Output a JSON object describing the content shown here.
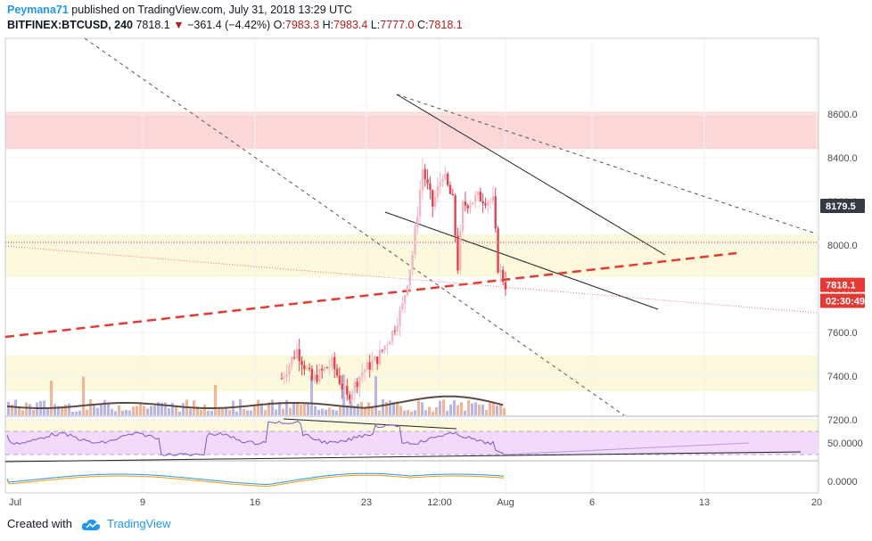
{
  "header": {
    "author": "Peymana71",
    "published_text": "published on TradingView.com, July 31, 2018 13:29 UTC",
    "symbol": "BITFINEX:BTCUSD, 240",
    "last": "7818.1",
    "change": "−361.4 (−4.42%)",
    "o_label": "O:",
    "o_value": "7983.3",
    "h_label": "H:",
    "h_value": "7983.4",
    "l_label": "L:",
    "l_value": "7777.0",
    "c_label": "C:",
    "c_value": "7818.1"
  },
  "footer": {
    "created_with": "Created with",
    "brand": "TradingView"
  },
  "colors": {
    "up": "#f1b7c2",
    "down": "#e04352",
    "grid": "#eef0f3",
    "rsi_fill": "#f1dafc"
  },
  "chart_data": {
    "type": "candlestick",
    "price_axis": {
      "ticks": [
        8600,
        8400,
        8200,
        8000,
        7800,
        7600,
        7400,
        7200
      ],
      "ylim": [
        7050,
        8750
      ]
    },
    "x_axis": {
      "ticks": [
        "Jul",
        "9",
        "16",
        "23",
        "12:00",
        "Aug",
        "6",
        "13",
        "20"
      ]
    },
    "price_labels": [
      {
        "text": "8179.5",
        "price": 8179.5,
        "style": "dark"
      },
      {
        "text": "7818.1",
        "price": 7818.1,
        "style": "red"
      },
      {
        "text": "02:30:49",
        "price": 7745,
        "style": "red"
      }
    ],
    "zones": [
      {
        "from": 8440,
        "to": 8610,
        "color": "#fcd7d7"
      },
      {
        "from": 7855,
        "to": 8050,
        "color": "#fcf8dc"
      },
      {
        "from": 7330,
        "to": 7495,
        "color": "#fcf8dc"
      },
      {
        "from": 7045,
        "to": 7200,
        "color": "#fcf8dc"
      }
    ],
    "rsi": {
      "ticks": [
        {
          "text": "50.0000",
          "value": 50
        }
      ],
      "upper": 70,
      "lower": 30
    },
    "macd": {
      "ticks": [
        {
          "text": "0.0000",
          "value": 0
        }
      ]
    },
    "trend_lines": [
      {
        "style": "dashed-gray",
        "points": [
          [
            6,
            0
          ],
          [
            76,
            42
          ]
        ]
      },
      {
        "style": "dashed-gray",
        "points": [
          [
            0,
            10
          ],
          [
            400,
            0
          ]
        ]
      }
    ]
  }
}
